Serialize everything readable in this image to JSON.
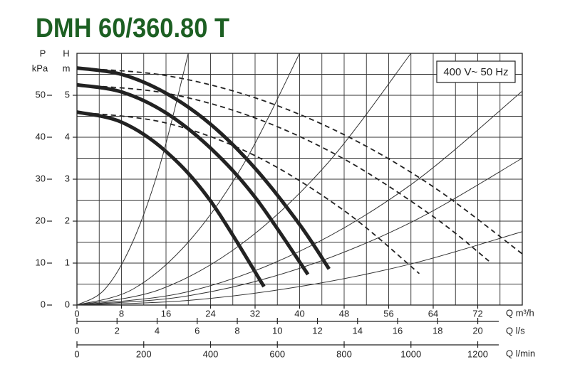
{
  "chart_data": {
    "type": "line",
    "title": "DMH 60/360.80 T",
    "annotation": "400 V~ 50 Hz",
    "y_label": "H",
    "y_unit": "m",
    "y2_label": "P",
    "y2_unit": "kPa",
    "x_label": "Q m³/h",
    "x2_label": "Q l/s",
    "x3_label": "Q l/min",
    "xlim": [
      0,
      80
    ],
    "xticks": [
      0,
      8,
      16,
      24,
      32,
      40,
      48,
      56,
      64,
      72
    ],
    "xgrid": [
      4,
      12,
      20,
      28,
      36,
      44,
      52,
      60,
      68,
      76
    ],
    "ylim": [
      0,
      6
    ],
    "yticks": [
      0,
      1,
      2,
      3,
      4,
      5
    ],
    "ygrid": [
      0.5,
      1.5,
      2.5,
      3.5,
      4.5,
      5.5
    ],
    "y2lim": [
      0,
      60
    ],
    "y2ticks": [
      0,
      10,
      20,
      30,
      40,
      50
    ],
    "x2lim": [
      0,
      22.22
    ],
    "x2ticks": [
      0,
      2,
      4,
      6,
      8,
      10,
      12,
      14,
      16,
      18,
      20
    ],
    "x3lim": [
      0,
      1333.3
    ],
    "x3ticks": [
      0,
      200,
      400,
      600,
      800,
      1000,
      1200
    ],
    "grid": true,
    "title_color": "#1c5f22",
    "series": [
      {
        "style": "thick",
        "color": "#222222",
        "x": [
          0,
          8,
          16,
          24,
          32,
          40,
          45.3
        ],
        "values": [
          5.65,
          5.5,
          5.05,
          4.31,
          3.26,
          1.92,
          0.86
        ]
      },
      {
        "style": "thick",
        "color": "#222222",
        "x": [
          0,
          8,
          16,
          24,
          32,
          41.5
        ],
        "values": [
          5.25,
          5.08,
          4.58,
          3.74,
          2.57,
          0.73
        ]
      },
      {
        "style": "thick",
        "color": "#222222",
        "x": [
          0,
          8,
          16,
          24,
          33.6
        ],
        "values": [
          4.6,
          4.36,
          3.66,
          2.48,
          0.44
        ]
      },
      {
        "style": "dashed",
        "color": "#222222",
        "x": [
          0,
          16,
          32,
          48,
          64,
          80
        ],
        "values": [
          5.65,
          5.47,
          4.94,
          4.06,
          2.82,
          1.22
        ]
      },
      {
        "style": "dashed",
        "color": "#222222",
        "x": [
          0,
          16,
          32,
          48,
          64,
          74
        ],
        "values": [
          5.25,
          5.05,
          4.46,
          3.48,
          2.11,
          1.05
        ]
      },
      {
        "style": "dashed",
        "color": "#222222",
        "x": [
          0,
          16,
          32,
          48,
          61.5
        ],
        "values": [
          4.6,
          4.34,
          3.56,
          2.25,
          0.75
        ]
      },
      {
        "style": "thin",
        "color": "#333333",
        "x": [
          0,
          5,
          10,
          15,
          20
        ],
        "values": [
          0,
          0.375,
          1.5,
          3.375,
          6
        ]
      },
      {
        "style": "thin",
        "color": "#333333",
        "x": [
          0,
          10,
          20,
          30,
          40
        ],
        "values": [
          0,
          0.375,
          1.5,
          3.375,
          6
        ]
      },
      {
        "style": "thin",
        "color": "#333333",
        "x": [
          0,
          15,
          30,
          45,
          60
        ],
        "values": [
          0,
          0.375,
          1.5,
          3.375,
          6
        ]
      },
      {
        "style": "thin",
        "color": "#333333",
        "x": [
          0,
          20,
          40,
          60,
          80
        ],
        "values": [
          0,
          0.32,
          1.28,
          2.87,
          5.1
        ]
      },
      {
        "style": "thin",
        "color": "#333333",
        "x": [
          0,
          20,
          40,
          60,
          80
        ],
        "values": [
          0,
          0.22,
          0.875,
          1.97,
          3.5
        ]
      },
      {
        "style": "thin",
        "color": "#333333",
        "x": [
          0,
          20,
          40,
          60,
          80
        ],
        "values": [
          0,
          0.11,
          0.44,
          0.98,
          1.75
        ]
      }
    ]
  }
}
